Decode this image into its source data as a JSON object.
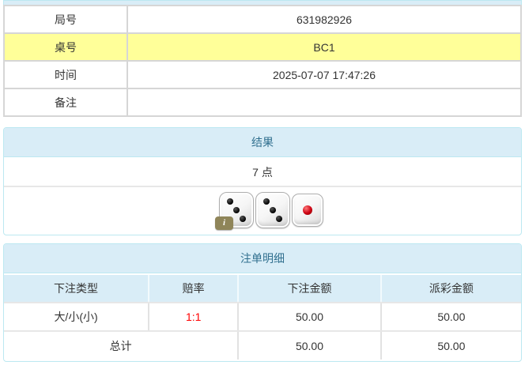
{
  "colors": {
    "header_bg": "#d9edf7",
    "header_text": "#31708f",
    "panel_border": "#bce8f1",
    "highlight_yellow": "#ffff99",
    "odds_red": "#ff0000"
  },
  "info_table": {
    "rows": [
      {
        "label": "局号",
        "value": "631982926",
        "highlight": false
      },
      {
        "label": "桌号",
        "value": "BC1",
        "highlight": true
      },
      {
        "label": "时间",
        "value": "2025-07-07 17:47:26",
        "highlight": false
      },
      {
        "label": "备注",
        "value": "",
        "highlight": false
      }
    ]
  },
  "result_panel": {
    "title": "结果",
    "points": "7 点",
    "dice": [
      {
        "value": 3,
        "pip_color": "black"
      },
      {
        "value": 3,
        "pip_color": "black"
      },
      {
        "value": 1,
        "pip_color": "red"
      }
    ],
    "info_badge": "i"
  },
  "bets_panel": {
    "title": "注单明细",
    "columns": [
      "下注类型",
      "赔率",
      "下注金额",
      "派彩金额"
    ],
    "rows": [
      {
        "type": "大/小(小)",
        "odds": "1:1",
        "bet": "50.00",
        "payout": "50.00"
      }
    ],
    "total": {
      "label": "总计",
      "bet": "50.00",
      "payout": "50.00"
    }
  }
}
